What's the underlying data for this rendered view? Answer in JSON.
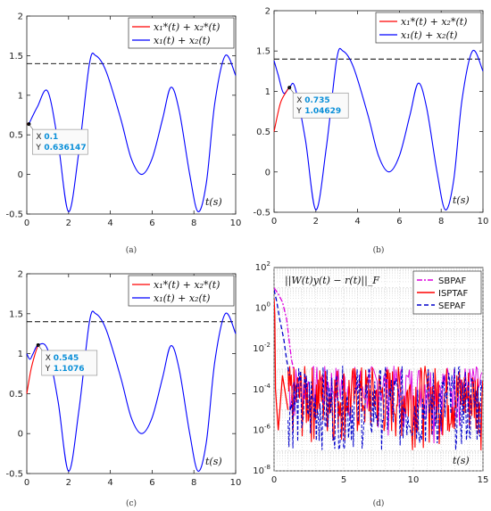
{
  "chart_data": [
    {
      "id": "a",
      "type": "line",
      "caption": "(a)",
      "xlim": [
        0,
        10
      ],
      "ylim": [
        -0.5,
        2
      ],
      "xticks": [
        "0",
        "2",
        "4",
        "6",
        "8",
        "10"
      ],
      "yticks": [
        "-0.5",
        "0",
        "0.5",
        "1",
        "1.5",
        "2"
      ],
      "xlabel": "t(s)",
      "grid": false,
      "legend_position": "top-right",
      "reference_line": {
        "y": 1.4,
        "style": "dashed",
        "color": "#000000"
      },
      "series": [
        {
          "name": "x₁*(t) + x₂*(t)",
          "color": "#ff0000",
          "x": [
            0,
            0.1
          ],
          "y": [
            0.636,
            0.636
          ]
        },
        {
          "name": "x₁(t) + x₂(t)",
          "color": "#0000ff",
          "x": [
            0.1,
            0.5,
            1,
            1.5,
            2,
            2.5,
            3,
            3.3,
            3.8,
            4.5,
            5,
            5.5,
            6,
            6.5,
            6.9,
            7.3,
            7.8,
            8.2,
            8.6,
            9,
            9.5,
            10
          ],
          "y": [
            0.636,
            0.85,
            1.05,
            0.4,
            -0.47,
            0.3,
            1.4,
            1.5,
            1.3,
            0.7,
            0.2,
            0.0,
            0.2,
            0.7,
            1.1,
            0.8,
            0.0,
            -0.47,
            -0.1,
            0.9,
            1.5,
            1.25
          ]
        }
      ],
      "annotation": {
        "x_label": "X",
        "x_value": "0.1",
        "y_label": "Y",
        "y_value": "0.636147",
        "point": [
          0.1,
          0.636
        ]
      }
    },
    {
      "id": "b",
      "type": "line",
      "caption": "(b)",
      "xlim": [
        0,
        10
      ],
      "ylim": [
        -0.5,
        2
      ],
      "xticks": [
        "0",
        "2",
        "4",
        "6",
        "8",
        "10"
      ],
      "yticks": [
        "-0.5",
        "0",
        "0.5",
        "1",
        "1.5",
        "2"
      ],
      "xlabel": "t(s)",
      "grid": false,
      "legend_position": "top-right",
      "reference_line": {
        "y": 1.4,
        "style": "dashed",
        "color": "#000000"
      },
      "series": [
        {
          "name": "x₁*(t) + x₂*(t)",
          "color": "#ff0000",
          "x": [
            0,
            0.3,
            0.6,
            0.735
          ],
          "y": [
            0.5,
            0.85,
            1.0,
            1.046
          ]
        },
        {
          "name": "x₁(t) + x₂(t)",
          "color": "#0000ff",
          "x": [
            0,
            0.2,
            0.45,
            0.735,
            1,
            1.5,
            2,
            2.5,
            3,
            3.3,
            3.8,
            4.5,
            5,
            5.5,
            6,
            6.5,
            6.9,
            7.3,
            7.8,
            8.2,
            8.6,
            9,
            9.5,
            10
          ],
          "y": [
            1.38,
            1.2,
            0.98,
            1.046,
            1.05,
            0.4,
            -0.47,
            0.3,
            1.4,
            1.5,
            1.3,
            0.7,
            0.2,
            0.0,
            0.2,
            0.7,
            1.1,
            0.8,
            0.0,
            -0.47,
            -0.1,
            0.9,
            1.5,
            1.25
          ]
        }
      ],
      "annotation": {
        "x_label": "X",
        "x_value": "0.735",
        "y_label": "Y",
        "y_value": "1.04629",
        "point": [
          0.735,
          1.046
        ]
      }
    },
    {
      "id": "c",
      "type": "line",
      "caption": "(c)",
      "xlim": [
        0,
        10
      ],
      "ylim": [
        -0.5,
        2
      ],
      "xticks": [
        "0",
        "2",
        "4",
        "6",
        "8",
        "10"
      ],
      "yticks": [
        "-0.5",
        "0",
        "0.5",
        "1",
        "1.5",
        "2"
      ],
      "xlabel": "t(s)",
      "grid": false,
      "legend_position": "top-right",
      "reference_line": {
        "y": 1.4,
        "style": "dashed",
        "color": "#000000"
      },
      "series": [
        {
          "name": "x₁*(t) + x₂*(t)",
          "color": "#ff0000",
          "x": [
            0,
            0.2,
            0.4,
            0.545
          ],
          "y": [
            0.5,
            0.8,
            1.0,
            1.1076
          ]
        },
        {
          "name": "x₁(t) + x₂(t)",
          "color": "#0000ff",
          "x": [
            0,
            0.15,
            0.3,
            0.545,
            1,
            1.5,
            2,
            2.5,
            3,
            3.3,
            3.8,
            4.5,
            5,
            5.5,
            6,
            6.5,
            6.9,
            7.3,
            7.8,
            8.2,
            8.6,
            9,
            9.5,
            10
          ],
          "y": [
            1.0,
            0.93,
            1.0,
            1.1076,
            1.05,
            0.4,
            -0.47,
            0.3,
            1.4,
            1.5,
            1.3,
            0.7,
            0.2,
            0.0,
            0.2,
            0.7,
            1.1,
            0.8,
            0.0,
            -0.47,
            -0.1,
            0.9,
            1.5,
            1.25
          ]
        }
      ],
      "annotation": {
        "x_label": "X",
        "x_value": "0.545",
        "y_label": "Y",
        "y_value": "1.1076",
        "point": [
          0.545,
          1.1076
        ]
      }
    },
    {
      "id": "d",
      "type": "line",
      "caption": "(d)",
      "yscale": "log",
      "xlim": [
        0,
        15
      ],
      "ylim": [
        1e-08,
        100
      ],
      "xticks": [
        "0",
        "5",
        "10",
        "15"
      ],
      "yticks": [
        "10^-8",
        "10^-6",
        "10^-4",
        "10^-2",
        "10^0",
        "10^2"
      ],
      "xlabel": "t(s)",
      "title": "||W(t)y(t) − r(t)||_F",
      "grid": true,
      "legend_position": "top-right",
      "series": [
        {
          "name": "SBPAF",
          "color": "#dd00dd",
          "style": "dashdot",
          "x": [
            0,
            0.3,
            0.6,
            0.9,
            1.1,
            1.25,
            1.4
          ],
          "y": [
            10,
            5,
            2,
            0.3,
            0.02,
            0.003,
            0.001
          ]
        },
        {
          "name": "ISPTAF",
          "color": "#ff0000",
          "style": "solid",
          "x": [
            0,
            0.05,
            0.1,
            0.3,
            0.6,
            1.0
          ],
          "y": [
            3,
            0.5,
            0.0001,
            1e-06,
            0.0005,
            1e-05
          ]
        },
        {
          "name": "SEPAF",
          "color": "#0000cc",
          "style": "dashed",
          "x": [
            0,
            0.2,
            0.4,
            0.7,
            0.9,
            1.1
          ],
          "y": [
            8,
            2,
            0.3,
            0.03,
            0.003,
            0.0005
          ]
        }
      ],
      "noise_band": {
        "x_start": 1.0,
        "x_end": 15,
        "upper": 0.0015,
        "lower": 1e-07
      }
    }
  ]
}
